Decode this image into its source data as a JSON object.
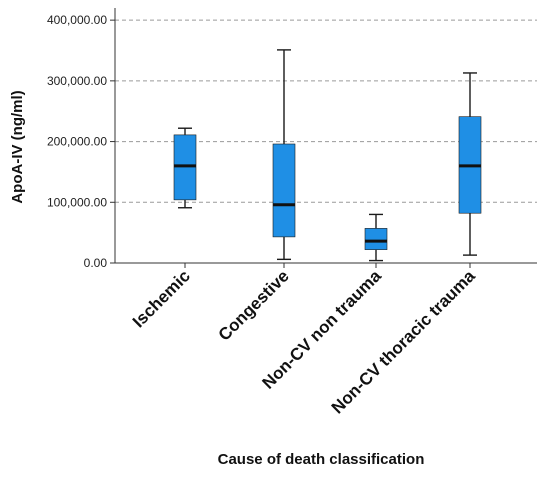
{
  "chart_data": {
    "type": "boxplot",
    "title": "",
    "xlabel": "Cause of death classification",
    "ylabel": "ApoA-IV (ng/ml)",
    "ylim": [
      0,
      420000
    ],
    "yticks": [
      0,
      100000,
      200000,
      300000,
      400000
    ],
    "ytick_labels": [
      "0.00",
      "100,000.00",
      "200,000.00",
      "300,000.00",
      "400,000.00"
    ],
    "grid": "horizontal dashed at y ticks",
    "box_color": "#1f8fe5",
    "box_edge_color": "#1a1a1a",
    "median_color": "#111111",
    "categories": [
      "Ischemic",
      "Congestive",
      "Non-CV non trauma",
      "Non-CV thoracic trauma"
    ],
    "boxes": [
      {
        "category": "Ischemic",
        "whisker_low": 91000,
        "q1": 104000,
        "median": 160000,
        "q3": 211000,
        "whisker_high": 222000
      },
      {
        "category": "Congestive",
        "whisker_low": 6000,
        "q1": 43000,
        "median": 96000,
        "q3": 196000,
        "whisker_high": 351000
      },
      {
        "category": "Non-CV non trauma",
        "whisker_low": 4000,
        "q1": 22000,
        "median": 36000,
        "q3": 57000,
        "whisker_high": 80000
      },
      {
        "category": "Non-CV thoracic trauma",
        "whisker_low": 13000,
        "q1": 82000,
        "median": 160000,
        "q3": 241000,
        "whisker_high": 313000
      }
    ]
  }
}
